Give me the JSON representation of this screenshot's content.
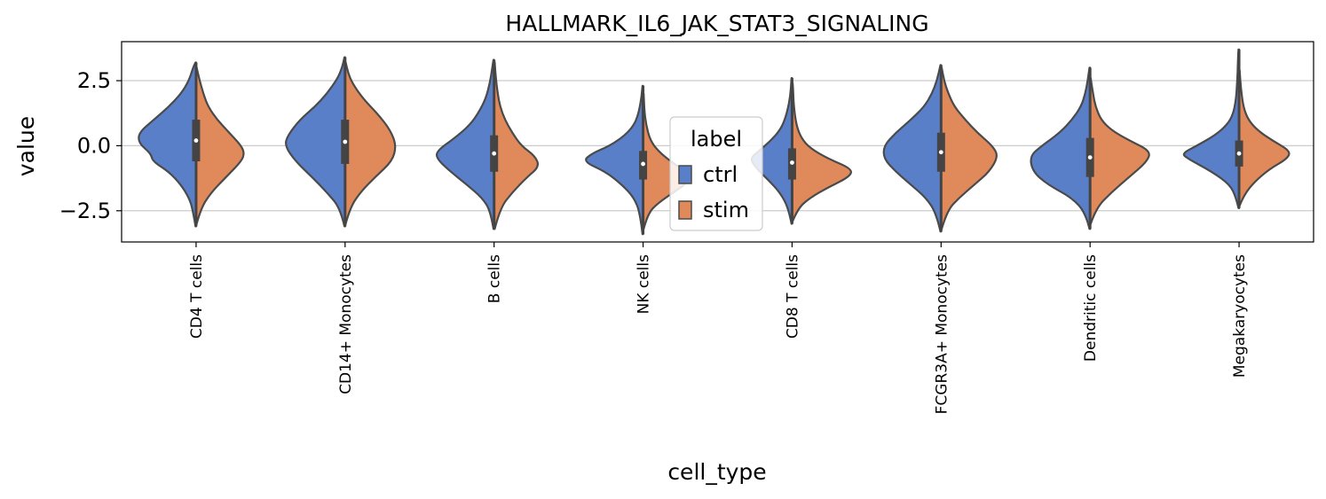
{
  "chart_data": {
    "type": "violin",
    "title": "HALLMARK_IL6_JAK_STAT3_SIGNALING",
    "xlabel": "cell_type",
    "ylabel": "value",
    "ylim": [
      -3.7,
      4.0
    ],
    "yticks": [
      -2.5,
      0.0,
      2.5
    ],
    "ytick_labels": [
      "−2.5",
      "0.0",
      "2.5"
    ],
    "grid": "horizontal",
    "split": true,
    "categories": [
      "CD4 T cells",
      "CD14+ Monocytes",
      "B cells",
      "NK cells",
      "CD8 T cells",
      "FCGR3A+ Monocytes",
      "Dendritic cells",
      "Megakaryocytes"
    ],
    "legend": {
      "title": "label",
      "placement": "center",
      "entries": [
        {
          "name": "ctrl",
          "color": "#5a7fc9"
        },
        {
          "name": "stim",
          "color": "#e0895a"
        }
      ]
    },
    "series": [
      {
        "name": "ctrl",
        "color": "#5a7fc9",
        "violins": [
          {
            "min": -3.1,
            "max": 3.2,
            "profile": [
              [
                -3.1,
                0.01
              ],
              [
                -2.4,
                0.06
              ],
              [
                -2.0,
                0.12
              ],
              [
                -1.5,
                0.25
              ],
              [
                -1.0,
                0.45
              ],
              [
                -0.6,
                0.72
              ],
              [
                -0.3,
                0.75
              ],
              [
                0.1,
                0.95
              ],
              [
                0.5,
                0.95
              ],
              [
                1.0,
                0.7
              ],
              [
                1.5,
                0.45
              ],
              [
                2.0,
                0.25
              ],
              [
                2.5,
                0.12
              ],
              [
                3.0,
                0.05
              ],
              [
                3.2,
                0.01
              ]
            ]
          },
          {
            "min": -3.1,
            "max": 3.4,
            "profile": [
              [
                -3.1,
                0.01
              ],
              [
                -2.4,
                0.08
              ],
              [
                -1.8,
                0.3
              ],
              [
                -1.2,
                0.55
              ],
              [
                -0.6,
                0.82
              ],
              [
                0.0,
                1.0
              ],
              [
                0.4,
                0.95
              ],
              [
                1.0,
                0.75
              ],
              [
                1.5,
                0.5
              ],
              [
                2.0,
                0.3
              ],
              [
                2.6,
                0.12
              ],
              [
                3.0,
                0.05
              ],
              [
                3.4,
                0.01
              ]
            ]
          },
          {
            "min": -3.2,
            "max": 3.3,
            "profile": [
              [
                -3.2,
                0.01
              ],
              [
                -2.5,
                0.06
              ],
              [
                -2.0,
                0.2
              ],
              [
                -1.5,
                0.45
              ],
              [
                -1.0,
                0.72
              ],
              [
                -0.5,
                0.95
              ],
              [
                -0.2,
                0.95
              ],
              [
                0.3,
                0.65
              ],
              [
                0.8,
                0.4
              ],
              [
                1.3,
                0.25
              ],
              [
                1.8,
                0.14
              ],
              [
                2.4,
                0.07
              ],
              [
                3.0,
                0.03
              ],
              [
                3.3,
                0.01
              ]
            ]
          },
          {
            "min": -3.4,
            "max": 2.3,
            "profile": [
              [
                -3.4,
                0.01
              ],
              [
                -2.6,
                0.05
              ],
              [
                -2.0,
                0.15
              ],
              [
                -1.5,
                0.35
              ],
              [
                -1.0,
                0.62
              ],
              [
                -0.6,
                1.0
              ],
              [
                -0.3,
                0.85
              ],
              [
                0.0,
                0.55
              ],
              [
                0.4,
                0.3
              ],
              [
                0.8,
                0.15
              ],
              [
                1.2,
                0.08
              ],
              [
                1.8,
                0.03
              ],
              [
                2.3,
                0.01
              ]
            ]
          },
          {
            "min": -3.0,
            "max": 2.6,
            "profile": [
              [
                -3.0,
                0.01
              ],
              [
                -2.4,
                0.06
              ],
              [
                -1.8,
                0.2
              ],
              [
                -1.3,
                0.4
              ],
              [
                -0.9,
                0.58
              ],
              [
                -0.5,
                0.7
              ],
              [
                -0.2,
                0.55
              ],
              [
                0.2,
                0.35
              ],
              [
                0.6,
                0.2
              ],
              [
                1.0,
                0.12
              ],
              [
                1.6,
                0.05
              ],
              [
                2.2,
                0.02
              ],
              [
                2.6,
                0.01
              ]
            ]
          },
          {
            "min": -3.3,
            "max": 3.1,
            "profile": [
              [
                -3.3,
                0.01
              ],
              [
                -2.6,
                0.08
              ],
              [
                -2.0,
                0.25
              ],
              [
                -1.5,
                0.5
              ],
              [
                -1.0,
                0.75
              ],
              [
                -0.5,
                0.95
              ],
              [
                0.0,
                0.95
              ],
              [
                0.5,
                0.75
              ],
              [
                1.0,
                0.5
              ],
              [
                1.5,
                0.28
              ],
              [
                2.0,
                0.15
              ],
              [
                2.5,
                0.07
              ],
              [
                3.1,
                0.01
              ]
            ]
          },
          {
            "min": -3.2,
            "max": 3.0,
            "profile": [
              [
                -3.2,
                0.01
              ],
              [
                -2.6,
                0.07
              ],
              [
                -2.0,
                0.3
              ],
              [
                -1.5,
                0.7
              ],
              [
                -1.0,
                0.95
              ],
              [
                -0.4,
                1.0
              ],
              [
                0.0,
                0.8
              ],
              [
                0.5,
                0.5
              ],
              [
                1.0,
                0.3
              ],
              [
                1.5,
                0.15
              ],
              [
                2.0,
                0.08
              ],
              [
                2.5,
                0.04
              ],
              [
                3.0,
                0.01
              ]
            ]
          },
          {
            "min": -2.4,
            "max": 3.7,
            "profile": [
              [
                -2.4,
                0.01
              ],
              [
                -2.0,
                0.05
              ],
              [
                -1.5,
                0.15
              ],
              [
                -1.0,
                0.45
              ],
              [
                -0.5,
                0.85
              ],
              [
                -0.3,
                0.95
              ],
              [
                0.0,
                0.7
              ],
              [
                0.4,
                0.4
              ],
              [
                0.8,
                0.2
              ],
              [
                1.2,
                0.1
              ],
              [
                1.8,
                0.05
              ],
              [
                2.5,
                0.03
              ],
              [
                3.2,
                0.02
              ],
              [
                3.7,
                0.01
              ]
            ]
          }
        ],
        "boxes": [
          {
            "q1": -0.6,
            "q3": 1.0,
            "median": 0.2
          },
          {
            "q1": -0.7,
            "q3": 1.0,
            "median": 0.15
          },
          {
            "q1": -1.0,
            "q3": 0.4,
            "median": -0.3
          },
          {
            "q1": -1.3,
            "q3": -0.2,
            "median": -0.7
          },
          {
            "q1": -1.3,
            "q3": -0.1,
            "median": -0.65
          },
          {
            "q1": -1.0,
            "q3": 0.5,
            "median": -0.25
          },
          {
            "q1": -1.2,
            "q3": 0.3,
            "median": -0.45
          },
          {
            "q1": -0.8,
            "q3": 0.2,
            "median": -0.3
          }
        ]
      },
      {
        "name": "stim",
        "color": "#e0895a",
        "violins": [
          {
            "min": -3.0,
            "max": 3.0,
            "profile": [
              [
                -3.0,
                0.01
              ],
              [
                -2.4,
                0.08
              ],
              [
                -1.8,
                0.25
              ],
              [
                -1.2,
                0.5
              ],
              [
                -0.6,
                0.75
              ],
              [
                -0.3,
                0.8
              ],
              [
                0.0,
                0.75
              ],
              [
                0.5,
                0.55
              ],
              [
                1.0,
                0.35
              ],
              [
                1.5,
                0.2
              ],
              [
                2.0,
                0.12
              ],
              [
                2.5,
                0.06
              ],
              [
                3.0,
                0.01
              ]
            ]
          },
          {
            "min": -3.0,
            "max": 3.2,
            "profile": [
              [
                -3.0,
                0.01
              ],
              [
                -2.4,
                0.08
              ],
              [
                -1.8,
                0.25
              ],
              [
                -1.2,
                0.5
              ],
              [
                -0.6,
                0.78
              ],
              [
                0.0,
                0.85
              ],
              [
                0.6,
                0.75
              ],
              [
                1.2,
                0.55
              ],
              [
                1.8,
                0.3
              ],
              [
                2.4,
                0.12
              ],
              [
                2.8,
                0.05
              ],
              [
                3.2,
                0.01
              ]
            ]
          },
          {
            "min": -3.2,
            "max": 3.2,
            "profile": [
              [
                -3.2,
                0.01
              ],
              [
                -2.4,
                0.1
              ],
              [
                -1.8,
                0.3
              ],
              [
                -1.2,
                0.55
              ],
              [
                -0.8,
                0.75
              ],
              [
                -0.4,
                0.68
              ],
              [
                0.0,
                0.45
              ],
              [
                0.5,
                0.3
              ],
              [
                1.0,
                0.18
              ],
              [
                1.5,
                0.1
              ],
              [
                2.0,
                0.06
              ],
              [
                2.6,
                0.03
              ],
              [
                3.2,
                0.01
              ]
            ]
          },
          {
            "min": -3.2,
            "max": 2.0,
            "profile": [
              [
                -3.2,
                0.01
              ],
              [
                -2.6,
                0.08
              ],
              [
                -2.2,
                0.25
              ],
              [
                -1.8,
                0.5
              ],
              [
                -1.4,
                0.75
              ],
              [
                -1.0,
                0.72
              ],
              [
                -0.6,
                0.45
              ],
              [
                -0.2,
                0.25
              ],
              [
                0.2,
                0.12
              ],
              [
                0.8,
                0.05
              ],
              [
                1.4,
                0.02
              ],
              [
                2.0,
                0.01
              ]
            ]
          },
          {
            "min": -2.9,
            "max": 2.4,
            "profile": [
              [
                -2.9,
                0.01
              ],
              [
                -2.4,
                0.1
              ],
              [
                -2.0,
                0.3
              ],
              [
                -1.6,
                0.6
              ],
              [
                -1.2,
                0.95
              ],
              [
                -0.9,
                1.0
              ],
              [
                -0.5,
                0.6
              ],
              [
                -0.1,
                0.3
              ],
              [
                0.3,
                0.15
              ],
              [
                0.8,
                0.07
              ],
              [
                1.5,
                0.03
              ],
              [
                2.0,
                0.02
              ],
              [
                2.4,
                0.01
              ]
            ]
          },
          {
            "min": -3.2,
            "max": 3.0,
            "profile": [
              [
                -3.2,
                0.01
              ],
              [
                -2.5,
                0.1
              ],
              [
                -2.0,
                0.3
              ],
              [
                -1.5,
                0.55
              ],
              [
                -1.0,
                0.8
              ],
              [
                -0.4,
                0.95
              ],
              [
                0.0,
                0.85
              ],
              [
                0.5,
                0.6
              ],
              [
                1.0,
                0.4
              ],
              [
                1.5,
                0.22
              ],
              [
                2.0,
                0.12
              ],
              [
                2.5,
                0.05
              ],
              [
                3.0,
                0.01
              ]
            ]
          },
          {
            "min": -3.0,
            "max": 2.6,
            "profile": [
              [
                -3.0,
                0.01
              ],
              [
                -2.4,
                0.1
              ],
              [
                -1.8,
                0.35
              ],
              [
                -1.2,
                0.65
              ],
              [
                -0.6,
                0.95
              ],
              [
                -0.2,
                1.0
              ],
              [
                0.2,
                0.65
              ],
              [
                0.6,
                0.35
              ],
              [
                1.0,
                0.18
              ],
              [
                1.5,
                0.09
              ],
              [
                2.0,
                0.05
              ],
              [
                2.6,
                0.01
              ]
            ]
          },
          {
            "min": -2.3,
            "max": 2.9,
            "profile": [
              [
                -2.3,
                0.01
              ],
              [
                -1.9,
                0.08
              ],
              [
                -1.4,
                0.25
              ],
              [
                -0.9,
                0.5
              ],
              [
                -0.5,
                0.8
              ],
              [
                -0.2,
                0.85
              ],
              [
                0.2,
                0.55
              ],
              [
                0.6,
                0.3
              ],
              [
                1.0,
                0.15
              ],
              [
                1.5,
                0.07
              ],
              [
                2.2,
                0.03
              ],
              [
                2.9,
                0.01
              ]
            ]
          }
        ]
      }
    ]
  }
}
